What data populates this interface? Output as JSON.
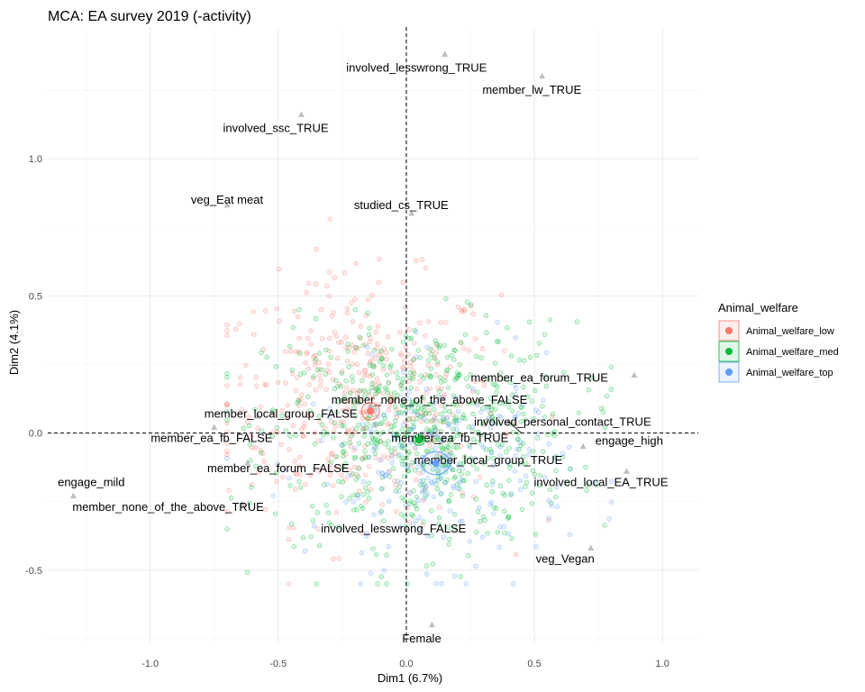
{
  "chart_data": {
    "type": "scatter",
    "title": "MCA: EA survey 2019 (-activity)",
    "xlabel": "Dim1 (6.7%)",
    "ylabel": "Dim2 (4.1%)",
    "xlim": [
      -1.4,
      1.14
    ],
    "ylim": [
      -0.77,
      1.48
    ],
    "xticks": [
      -1.0,
      -0.5,
      0.0,
      0.5,
      1.0
    ],
    "xtick_labels": [
      "-1.0",
      "-0.5",
      "0.0",
      "0.5",
      "1.0"
    ],
    "yticks": [
      -0.5,
      0.0,
      0.5,
      1.0
    ],
    "ytick_labels": [
      "-0.5",
      "0.0",
      "0.5",
      "1.0"
    ],
    "grid": true,
    "reference_lines": {
      "x": 0,
      "y": 0,
      "style": "dashed"
    },
    "legend": {
      "title": "Animal_welfare",
      "position": "right",
      "items": [
        {
          "label": "Animal_welfare_low",
          "color": "#F8766D"
        },
        {
          "label": "Animal_welfare_med",
          "color": "#00BA38"
        },
        {
          "label": "Animal_welfare_top",
          "color": "#619CFF"
        }
      ]
    },
    "group_centroids": [
      {
        "group": "Animal_welfare_low",
        "x": -0.14,
        "y": 0.08,
        "color": "#F8766D",
        "ellipse_rx": 0.035,
        "ellipse_ry": 0.032
      },
      {
        "group": "Animal_welfare_med",
        "x": 0.05,
        "y": -0.025,
        "color": "#00BA38",
        "ellipse_rx": 0.022,
        "ellipse_ry": 0.02
      },
      {
        "group": "Animal_welfare_top",
        "x": 0.115,
        "y": -0.11,
        "color": "#619CFF",
        "ellipse_rx": 0.055,
        "ellipse_ry": 0.042
      }
    ],
    "variable_points": [
      {
        "label": "involved_lesswrong_TRUE",
        "x": 0.15,
        "y": 1.38,
        "lx": 0.04,
        "ly": 1.33
      },
      {
        "label": "member_lw_TRUE",
        "x": 0.53,
        "y": 1.3,
        "lx": 0.49,
        "ly": 1.25
      },
      {
        "label": "involved_ssc_TRUE",
        "x": -0.41,
        "y": 1.16,
        "lx": -0.51,
        "ly": 1.11
      },
      {
        "label": "veg_Eat meat",
        "x": -0.7,
        "y": 0.83,
        "lx": -0.7,
        "ly": 0.85
      },
      {
        "label": "studied_cs_TRUE",
        "x": 0.02,
        "y": 0.8,
        "lx": -0.02,
        "ly": 0.83
      },
      {
        "label": "member_ea_forum_TRUE",
        "x": 0.89,
        "y": 0.21,
        "lx": 0.52,
        "ly": 0.2
      },
      {
        "label": "member_none_of_the_above_FALSE",
        "x": -0.14,
        "y": 0.1,
        "lx": 0.09,
        "ly": 0.12
      },
      {
        "label": "member_local_group_FALSE",
        "x": -0.58,
        "y": 0.06,
        "lx": -0.49,
        "ly": 0.07
      },
      {
        "label": "involved_personal_contact_TRUE",
        "x": 0.4,
        "y": 0.04,
        "lx": 0.61,
        "ly": 0.04
      },
      {
        "label": "member_ea_fb_FALSE",
        "x": -0.75,
        "y": 0.02,
        "lx": -0.76,
        "ly": -0.02
      },
      {
        "label": "member_ea_fb_TRUE",
        "x": 0.14,
        "y": -0.03,
        "lx": 0.17,
        "ly": -0.02
      },
      {
        "label": "engage_high",
        "x": 0.69,
        "y": -0.05,
        "lx": 0.87,
        "ly": -0.03
      },
      {
        "label": "member_local_group_TRUE",
        "x": 0.18,
        "y": -0.1,
        "lx": 0.32,
        "ly": -0.1
      },
      {
        "label": "member_ea_forum_FALSE",
        "x": -0.62,
        "y": -0.11,
        "lx": -0.5,
        "ly": -0.13
      },
      {
        "label": "engage_mild",
        "x": -1.3,
        "y": -0.23,
        "lx": -1.23,
        "ly": -0.18
      },
      {
        "label": "involved_local_EA_TRUE",
        "x": 0.86,
        "y": -0.14,
        "lx": 0.76,
        "ly": -0.18
      },
      {
        "label": "member_none_of_the_above_TRUE",
        "x": -0.64,
        "y": -0.26,
        "lx": -0.93,
        "ly": -0.27
      },
      {
        "label": "involved_lesswrong_FALSE",
        "x": 0.0,
        "y": -0.35,
        "lx": -0.05,
        "ly": -0.35
      },
      {
        "label": "veg_Vegan",
        "x": 0.72,
        "y": -0.42,
        "lx": 0.62,
        "ly": -0.46
      },
      {
        "label": "Female",
        "x": 0.1,
        "y": -0.7,
        "lx": 0.06,
        "ly": -0.75
      }
    ]
  }
}
